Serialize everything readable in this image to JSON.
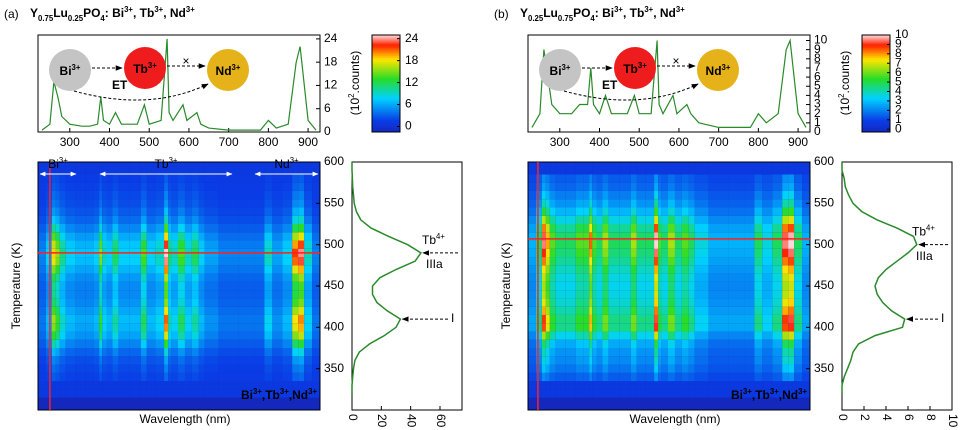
{
  "panels": [
    {
      "label": "(a)",
      "title_parts": [
        "Y",
        "0.75",
        "Lu",
        "0.25",
        "PO",
        "4",
        ": Bi",
        "3+",
        ", Tb",
        "3+",
        ", Nd",
        "3+"
      ],
      "diagram": {
        "ions": [
          [
            "Bi",
            "3+"
          ],
          [
            "Tb",
            "3+"
          ],
          [
            "Nd",
            "3+"
          ]
        ],
        "ion_colors": [
          "#c4c4c4",
          "#ee1c1c",
          "#e6b21a"
        ],
        "ion_text_colors": [
          "#ee1c1c",
          "#ffffff",
          "#1e8f1e"
        ],
        "et": "ET",
        "cross": "×"
      }
    },
    {
      "label": "(b)",
      "title_parts": [
        "Y",
        "0.25",
        "Lu",
        "0.75",
        "PO",
        "4",
        ": Bi",
        "3+",
        ", Tb",
        "3+",
        ", Nd",
        "3+"
      ],
      "diagram": {
        "ions": [
          [
            "Bi",
            "3+"
          ],
          [
            "Tb",
            "3+"
          ],
          [
            "Nd",
            "3+"
          ]
        ],
        "ion_colors": [
          "#c4c4c4",
          "#ee1c1c",
          "#e6b21a"
        ],
        "ion_text_colors": [
          "#ee1c1c",
          "#ffffff",
          "#1e8f1e"
        ],
        "et": "ET",
        "cross": "×"
      }
    }
  ],
  "chart_data": [
    {
      "type": "line",
      "color": "#2a8a2a",
      "x": [
        230,
        250,
        260,
        270,
        280,
        300,
        330,
        350,
        370,
        378,
        385,
        400,
        415,
        430,
        470,
        488,
        500,
        530,
        545,
        550,
        560,
        585,
        595,
        620,
        630,
        650,
        700,
        750,
        780,
        800,
        820,
        850,
        870,
        880,
        900,
        920
      ],
      "values": [
        0.5,
        2,
        13,
        9,
        4,
        2,
        1.5,
        1.5,
        2,
        9,
        3,
        2,
        5,
        2,
        2,
        7,
        2,
        3,
        24,
        5,
        3,
        7,
        3,
        5,
        2,
        1,
        0.5,
        0.5,
        0.5,
        3,
        1,
        2,
        18,
        22,
        3,
        0.5
      ],
      "xlim": [
        220,
        930
      ],
      "xticks": [
        300,
        400,
        500,
        600,
        700,
        800,
        900
      ],
      "ylim": [
        0,
        25
      ],
      "yticks": [
        0,
        6,
        12,
        18,
        24
      ],
      "ylabel_parts": [
        "(10",
        "2",
        ".counts)"
      ]
    },
    {
      "type": "heatmap",
      "xlabel": "Wavelength (nm)",
      "ylabel": "Temperature (K)",
      "ylim": [
        300,
        600
      ],
      "yticks": [
        350,
        400,
        450,
        500,
        550,
        600
      ],
      "cursor": [
        250,
        490
      ],
      "cursor_color": "#ff2020",
      "annotations": [
        [
          "Bi",
          "3+"
        ],
        [
          "Tb",
          "3+"
        ],
        [
          "Nd",
          "3+"
        ]
      ],
      "inset_parts": [
        "Bi",
        "3+",
        ",Tb",
        "3+",
        ",Nd",
        "3+"
      ],
      "colorbar": {
        "lim": [
          -1.5,
          25
        ],
        "ticks": [
          0,
          6,
          12,
          18,
          24
        ]
      }
    },
    {
      "type": "line",
      "orientation": "vertical",
      "color": "#2a8a2a",
      "x": [
        320,
        330,
        340,
        350,
        360,
        370,
        380,
        390,
        400,
        410,
        420,
        430,
        440,
        450,
        460,
        470,
        480,
        490,
        500,
        510,
        520,
        530,
        540,
        550,
        560,
        570,
        580,
        590,
        600
      ],
      "values": [
        0,
        0,
        0.5,
        1,
        2,
        5,
        12,
        22,
        30,
        33,
        24,
        17,
        14,
        14,
        19,
        30,
        43,
        47,
        38,
        25,
        13,
        6,
        3,
        1.5,
        1,
        0.5,
        0.3,
        0,
        0
      ],
      "xlim": [
        0,
        75
      ],
      "xticks": [
        0,
        20,
        40,
        60
      ],
      "ylim": [
        300,
        600
      ],
      "annotations": [
        [
          "Tb",
          "4+"
        ],
        [
          "IIIa"
        ],
        [
          "I"
        ]
      ]
    },
    {
      "type": "line",
      "color": "#2a8a2a",
      "x": [
        230,
        250,
        260,
        270,
        280,
        300,
        330,
        350,
        370,
        378,
        385,
        400,
        415,
        430,
        470,
        488,
        500,
        530,
        545,
        550,
        560,
        585,
        595,
        620,
        630,
        650,
        700,
        750,
        780,
        800,
        820,
        850,
        870,
        880,
        900,
        920
      ],
      "values": [
        0.5,
        2,
        9,
        6,
        3,
        2,
        2,
        3,
        3,
        7,
        3,
        2,
        4,
        2,
        2,
        4,
        2,
        2,
        10,
        3,
        2,
        4,
        2,
        3,
        2,
        1,
        0.5,
        0.5,
        0.5,
        2,
        1,
        2,
        9,
        10,
        2,
        0.5
      ],
      "xlim": [
        220,
        930
      ],
      "xticks": [
        300,
        400,
        500,
        600,
        700,
        800,
        900
      ],
      "ylim": [
        0,
        10.6
      ],
      "yticks": [
        0,
        1,
        2,
        3,
        4,
        5,
        6,
        7,
        8,
        9,
        10
      ],
      "ylabel_parts": [
        "(10",
        "2",
        ".counts)"
      ]
    },
    {
      "type": "heatmap",
      "xlabel": "Wavelength (nm)",
      "ylabel": "Temperature (K)",
      "ylim": [
        300,
        600
      ],
      "yticks": [
        350,
        400,
        450,
        500,
        550,
        600
      ],
      "cursor": [
        245,
        507
      ],
      "cursor_color": "#ff2020",
      "inset_parts": [
        "Bi",
        "3+",
        ",Tb",
        "3+",
        ",Nd",
        "3+"
      ],
      "colorbar": {
        "lim": [
          -0.3,
          10
        ],
        "ticks": [
          0,
          1,
          2,
          3,
          4,
          5,
          6,
          7,
          8,
          9,
          10
        ]
      }
    },
    {
      "type": "line",
      "orientation": "vertical",
      "color": "#2a8a2a",
      "x": [
        320,
        330,
        340,
        350,
        360,
        370,
        380,
        390,
        400,
        410,
        420,
        430,
        440,
        450,
        460,
        470,
        480,
        490,
        500,
        510,
        520,
        530,
        540,
        550,
        560,
        570,
        580,
        590,
        600
      ],
      "values": [
        0,
        0,
        0.2,
        0.5,
        0.8,
        1,
        1.5,
        3,
        5.5,
        5.7,
        4.5,
        3.7,
        3.2,
        3,
        3.3,
        4,
        5,
        6,
        6.8,
        6.5,
        5,
        3.2,
        1.8,
        1,
        0.6,
        0.3,
        0.2,
        0,
        0
      ],
      "xlim": [
        0,
        10
      ],
      "xticks": [
        0,
        2,
        4,
        6,
        8,
        10
      ],
      "ylim": [
        300,
        600
      ],
      "annotations": [
        [
          "Tb",
          "4+"
        ],
        [
          "IIIa"
        ],
        [
          "I"
        ]
      ]
    }
  ]
}
